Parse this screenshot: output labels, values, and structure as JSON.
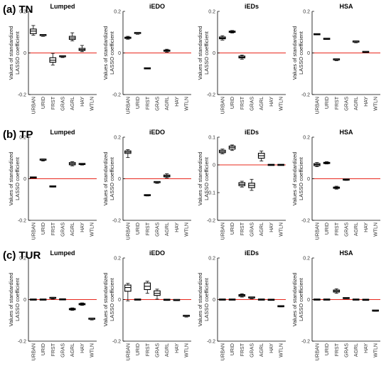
{
  "figure": {
    "row_labels": [
      "(a) TN",
      "(b) TP",
      "(c) TUR"
    ],
    "ylabel_line1": "Values of standardized",
    "ylabel_line2": "LASSO coefficient",
    "colors": {
      "box": "#000000",
      "zero_line": "#e8281e",
      "axis": "#000000"
    }
  },
  "chart_data": [
    {
      "type": "box",
      "row": 0,
      "col": 0,
      "title": "Lumped",
      "ylim": [
        -0.2,
        0.2
      ],
      "yticks": [
        -0.2,
        0,
        0.2
      ],
      "categories": [
        "URBAN",
        "URID",
        "FRST",
        "GRAS",
        "AGRL",
        "HAY",
        "WTLN"
      ],
      "boxes": [
        {
          "wl": 0.085,
          "q1": 0.093,
          "med": 0.105,
          "q3": 0.115,
          "wh": 0.132
        },
        {
          "wl": 0.08,
          "q1": 0.082,
          "med": 0.084,
          "q3": 0.086,
          "wh": 0.088
        },
        {
          "wl": -0.058,
          "q1": -0.045,
          "med": -0.035,
          "q3": -0.023,
          "wh": -0.002
        },
        {
          "wl": -0.022,
          "q1": -0.02,
          "med": -0.018,
          "q3": -0.016,
          "wh": -0.014
        },
        {
          "wl": 0.058,
          "q1": 0.065,
          "med": 0.072,
          "q3": 0.08,
          "wh": 0.097
        },
        {
          "wl": 0.006,
          "q1": 0.012,
          "med": 0.016,
          "q3": 0.022,
          "wh": 0.036
        },
        null
      ]
    },
    {
      "type": "box",
      "row": 0,
      "col": 1,
      "title": "iEDO",
      "ylim": [
        -0.2,
        0.2
      ],
      "yticks": [
        -0.2,
        0,
        0.2
      ],
      "categories": [
        "URBAN",
        "URID",
        "FRST",
        "GRAS",
        "AGRL",
        "HAY",
        "WTLN"
      ],
      "boxes": [
        {
          "wl": 0.066,
          "q1": 0.07,
          "med": 0.073,
          "q3": 0.076,
          "wh": 0.08
        },
        {
          "wl": 0.09,
          "q1": 0.092,
          "med": 0.094,
          "q3": 0.096,
          "wh": 0.098
        },
        {
          "wl": -0.077,
          "q1": -0.076,
          "med": -0.075,
          "q3": -0.074,
          "wh": -0.073
        },
        null,
        {
          "wl": 0.004,
          "q1": 0.008,
          "med": 0.011,
          "q3": 0.014,
          "wh": 0.018
        },
        null,
        null
      ]
    },
    {
      "type": "box",
      "row": 0,
      "col": 2,
      "title": "iEDs",
      "ylim": [
        -0.2,
        0.2
      ],
      "yticks": [
        -0.2,
        0,
        0.2
      ],
      "categories": [
        "URBAN",
        "URID",
        "FRST",
        "GRAS",
        "AGRL",
        "HAY",
        "WTLN"
      ],
      "boxes": [
        {
          "wl": 0.062,
          "q1": 0.068,
          "med": 0.072,
          "q3": 0.077,
          "wh": 0.083
        },
        {
          "wl": 0.096,
          "q1": 0.099,
          "med": 0.102,
          "q3": 0.105,
          "wh": 0.108
        },
        {
          "wl": -0.03,
          "q1": -0.024,
          "med": -0.02,
          "q3": -0.015,
          "wh": -0.01
        },
        null,
        null,
        null,
        null
      ]
    },
    {
      "type": "box",
      "row": 0,
      "col": 3,
      "title": "HSA",
      "ylim": [
        -0.2,
        0.2
      ],
      "yticks": [
        -0.2,
        0,
        0.2
      ],
      "categories": [
        "URBAN",
        "URID",
        "FRST",
        "GRAS",
        "AGRL",
        "HAY",
        "WTLN"
      ],
      "boxes": [
        {
          "wl": 0.087,
          "q1": 0.088,
          "med": 0.089,
          "q3": 0.09,
          "wh": 0.091
        },
        {
          "wl": 0.065,
          "q1": 0.066,
          "med": 0.067,
          "q3": 0.068,
          "wh": 0.069
        },
        {
          "wl": -0.037,
          "q1": -0.035,
          "med": -0.033,
          "q3": -0.031,
          "wh": -0.029
        },
        null,
        {
          "wl": 0.049,
          "q1": 0.051,
          "med": 0.053,
          "q3": 0.055,
          "wh": 0.057
        },
        {
          "wl": 0.002,
          "q1": 0.003,
          "med": 0.004,
          "q3": 0.005,
          "wh": 0.006
        },
        null
      ]
    },
    {
      "type": "box",
      "row": 1,
      "col": 0,
      "title": "Lumped",
      "ylim": [
        -0.2,
        0.2
      ],
      "yticks": [
        -0.2,
        0,
        0.2
      ],
      "categories": [
        "URBAN",
        "URID",
        "FRST",
        "GRAS",
        "AGRL",
        "HAY",
        "WTLN"
      ],
      "boxes": [
        {
          "wl": 0.003,
          "q1": 0.004,
          "med": 0.005,
          "q3": 0.006,
          "wh": 0.007
        },
        {
          "wl": 0.085,
          "q1": 0.088,
          "med": 0.09,
          "q3": 0.092,
          "wh": 0.095
        },
        {
          "wl": -0.04,
          "q1": -0.039,
          "med": -0.038,
          "q3": -0.037,
          "wh": -0.036
        },
        null,
        {
          "wl": 0.062,
          "q1": 0.067,
          "med": 0.072,
          "q3": 0.078,
          "wh": 0.082
        },
        {
          "wl": 0.066,
          "q1": 0.068,
          "med": 0.07,
          "q3": 0.071,
          "wh": 0.072
        },
        null
      ]
    },
    {
      "type": "box",
      "row": 1,
      "col": 1,
      "title": "iEDO",
      "ylim": [
        -0.2,
        0.2
      ],
      "yticks": [
        -0.2,
        0,
        0.2
      ],
      "categories": [
        "URBAN",
        "URID",
        "FRST",
        "GRAS",
        "AGRL",
        "HAY",
        "WTLN"
      ],
      "boxes": [
        {
          "wl": 0.102,
          "q1": 0.122,
          "med": 0.128,
          "q3": 0.134,
          "wh": 0.14
        },
        null,
        {
          "wl": -0.083,
          "q1": -0.082,
          "med": -0.08,
          "q3": -0.079,
          "wh": -0.077
        },
        {
          "wl": -0.022,
          "q1": -0.02,
          "med": -0.018,
          "q3": -0.016,
          "wh": -0.014
        },
        {
          "wl": 0.004,
          "q1": 0.009,
          "med": 0.013,
          "q3": 0.018,
          "wh": 0.024
        },
        null,
        null
      ]
    },
    {
      "type": "box",
      "row": 1,
      "col": 2,
      "title": "iEDs",
      "ylim": [
        -0.2,
        0.1
      ],
      "yticks": [
        -0.2,
        -0.1,
        0,
        0.1
      ],
      "categories": [
        "URBAN",
        "URID",
        "FRST",
        "GRAS",
        "AGRL",
        "HAY",
        "WTLN"
      ],
      "boxes": [
        {
          "wl": 0.04,
          "q1": 0.044,
          "med": 0.048,
          "q3": 0.053,
          "wh": 0.057
        },
        {
          "wl": 0.052,
          "q1": 0.057,
          "med": 0.063,
          "q3": 0.068,
          "wh": 0.072
        },
        {
          "wl": -0.08,
          "q1": -0.075,
          "med": -0.07,
          "q3": -0.064,
          "wh": -0.059
        },
        {
          "wl": -0.092,
          "q1": -0.082,
          "med": -0.074,
          "q3": -0.066,
          "wh": -0.052
        },
        {
          "wl": 0.014,
          "q1": 0.024,
          "med": 0.033,
          "q3": 0.042,
          "wh": 0.05
        },
        {
          "wl": -0.001,
          "q1": -0.001,
          "med": 0.0,
          "q3": 0.0,
          "wh": 0.001
        },
        {
          "wl": -0.001,
          "q1": -0.001,
          "med": 0.0,
          "q3": 0.0,
          "wh": 0.001
        }
      ]
    },
    {
      "type": "box",
      "row": 1,
      "col": 3,
      "title": "HSA",
      "ylim": [
        -0.2,
        0.2
      ],
      "yticks": [
        -0.2,
        0,
        0.2
      ],
      "categories": [
        "URBAN",
        "URID",
        "FRST",
        "GRAS",
        "AGRL",
        "HAY",
        "WTLN"
      ],
      "boxes": [
        {
          "wl": 0.058,
          "q1": 0.063,
          "med": 0.068,
          "q3": 0.073,
          "wh": 0.078
        },
        {
          "wl": 0.071,
          "q1": 0.073,
          "med": 0.076,
          "q3": 0.079,
          "wh": 0.082
        },
        {
          "wl": -0.05,
          "q1": -0.046,
          "med": -0.043,
          "q3": -0.04,
          "wh": -0.036
        },
        {
          "wl": -0.008,
          "q1": -0.006,
          "med": -0.005,
          "q3": -0.004,
          "wh": -0.002
        },
        null,
        null,
        null
      ]
    },
    {
      "type": "box",
      "row": 2,
      "col": 0,
      "title": "Lumped",
      "ylim": [
        -0.2,
        0.2
      ],
      "yticks": [
        -0.2,
        0,
        0.2
      ],
      "categories": [
        "URBAN",
        "URID",
        "FRST",
        "GRAS",
        "AGRL",
        "HAY",
        "WTLN"
      ],
      "boxes": [
        {
          "wl": -0.001,
          "q1": -0.001,
          "med": 0.0,
          "q3": 0.0,
          "wh": 0.001
        },
        {
          "wl": -0.001,
          "q1": -0.001,
          "med": 0.0,
          "q3": 0.0,
          "wh": 0.001
        },
        {
          "wl": 0.002,
          "q1": 0.004,
          "med": 0.006,
          "q3": 0.008,
          "wh": 0.011
        },
        {
          "wl": -0.002,
          "q1": -0.001,
          "med": 0.0,
          "q3": 0.001,
          "wh": 0.002
        },
        {
          "wl": -0.052,
          "q1": -0.049,
          "med": -0.046,
          "q3": -0.043,
          "wh": -0.04
        },
        {
          "wl": -0.028,
          "q1": -0.025,
          "med": -0.022,
          "q3": -0.019,
          "wh": -0.016
        },
        {
          "wl": -0.098,
          "q1": -0.096,
          "med": -0.094,
          "q3": -0.092,
          "wh": -0.09
        }
      ]
    },
    {
      "type": "box",
      "row": 2,
      "col": 1,
      "title": "iEDO",
      "ylim": [
        -0.2,
        0.2
      ],
      "yticks": [
        -0.2,
        0,
        0.2
      ],
      "categories": [
        "URBAN",
        "URID",
        "FRST",
        "GRAS",
        "AGRL",
        "HAY",
        "WTLN"
      ],
      "boxes": [
        {
          "wl": -0.006,
          "q1": 0.04,
          "med": 0.058,
          "q3": 0.07,
          "wh": 0.078
        },
        {
          "wl": -0.001,
          "q1": -0.001,
          "med": 0.0,
          "q3": 0.0,
          "wh": 0.001
        },
        {
          "wl": 0.03,
          "q1": 0.048,
          "med": 0.064,
          "q3": 0.08,
          "wh": 0.088
        },
        {
          "wl": 0.002,
          "q1": 0.02,
          "med": 0.03,
          "q3": 0.042,
          "wh": 0.05
        },
        {
          "wl": -0.004,
          "q1": -0.003,
          "med": -0.002,
          "q3": -0.001,
          "wh": 0.0
        },
        {
          "wl": -0.005,
          "q1": -0.004,
          "med": -0.003,
          "q3": -0.002,
          "wh": -0.001
        },
        {
          "wl": -0.084,
          "q1": -0.082,
          "med": -0.08,
          "q3": -0.078,
          "wh": -0.076
        }
      ]
    },
    {
      "type": "box",
      "row": 2,
      "col": 2,
      "title": "iEDs",
      "ylim": [
        -0.2,
        0.2
      ],
      "yticks": [
        -0.2,
        0,
        0.2
      ],
      "categories": [
        "URBAN",
        "URID",
        "FRST",
        "GRAS",
        "AGRL",
        "HAY",
        "WTLN"
      ],
      "boxes": [
        {
          "wl": -0.001,
          "q1": -0.001,
          "med": 0.0,
          "q3": 0.0,
          "wh": 0.001
        },
        {
          "wl": -0.001,
          "q1": -0.001,
          "med": 0.0,
          "q3": 0.0,
          "wh": 0.001
        },
        {
          "wl": 0.012,
          "q1": 0.016,
          "med": 0.02,
          "q3": 0.024,
          "wh": 0.028
        },
        {
          "wl": 0.004,
          "q1": 0.006,
          "med": 0.008,
          "q3": 0.01,
          "wh": 0.012
        },
        {
          "wl": -0.001,
          "q1": -0.001,
          "med": 0.0,
          "q3": 0.0,
          "wh": 0.001
        },
        {
          "wl": -0.002,
          "q1": -0.002,
          "med": -0.001,
          "q3": -0.001,
          "wh": 0.0
        },
        {
          "wl": -0.035,
          "q1": -0.034,
          "med": -0.033,
          "q3": -0.032,
          "wh": -0.031
        }
      ]
    },
    {
      "type": "box",
      "row": 2,
      "col": 3,
      "title": "HSA",
      "ylim": [
        -0.2,
        0.2
      ],
      "yticks": [
        -0.2,
        0,
        0.2
      ],
      "categories": [
        "URBAN",
        "URID",
        "FRST",
        "GRAS",
        "AGRL",
        "HAY",
        "WTLN"
      ],
      "boxes": [
        {
          "wl": -0.001,
          "q1": -0.001,
          "med": 0.0,
          "q3": 0.0,
          "wh": 0.001
        },
        {
          "wl": -0.001,
          "q1": -0.001,
          "med": 0.0,
          "q3": 0.0,
          "wh": 0.001
        },
        {
          "wl": 0.03,
          "q1": 0.036,
          "med": 0.041,
          "q3": 0.046,
          "wh": 0.052
        },
        {
          "wl": 0.004,
          "q1": 0.005,
          "med": 0.006,
          "q3": 0.007,
          "wh": 0.008
        },
        {
          "wl": -0.001,
          "q1": -0.001,
          "med": 0.0,
          "q3": 0.0,
          "wh": 0.001
        },
        {
          "wl": -0.002,
          "q1": -0.002,
          "med": -0.001,
          "q3": -0.001,
          "wh": 0.0
        },
        {
          "wl": -0.056,
          "q1": -0.055,
          "med": -0.054,
          "q3": -0.053,
          "wh": -0.052
        }
      ]
    }
  ]
}
